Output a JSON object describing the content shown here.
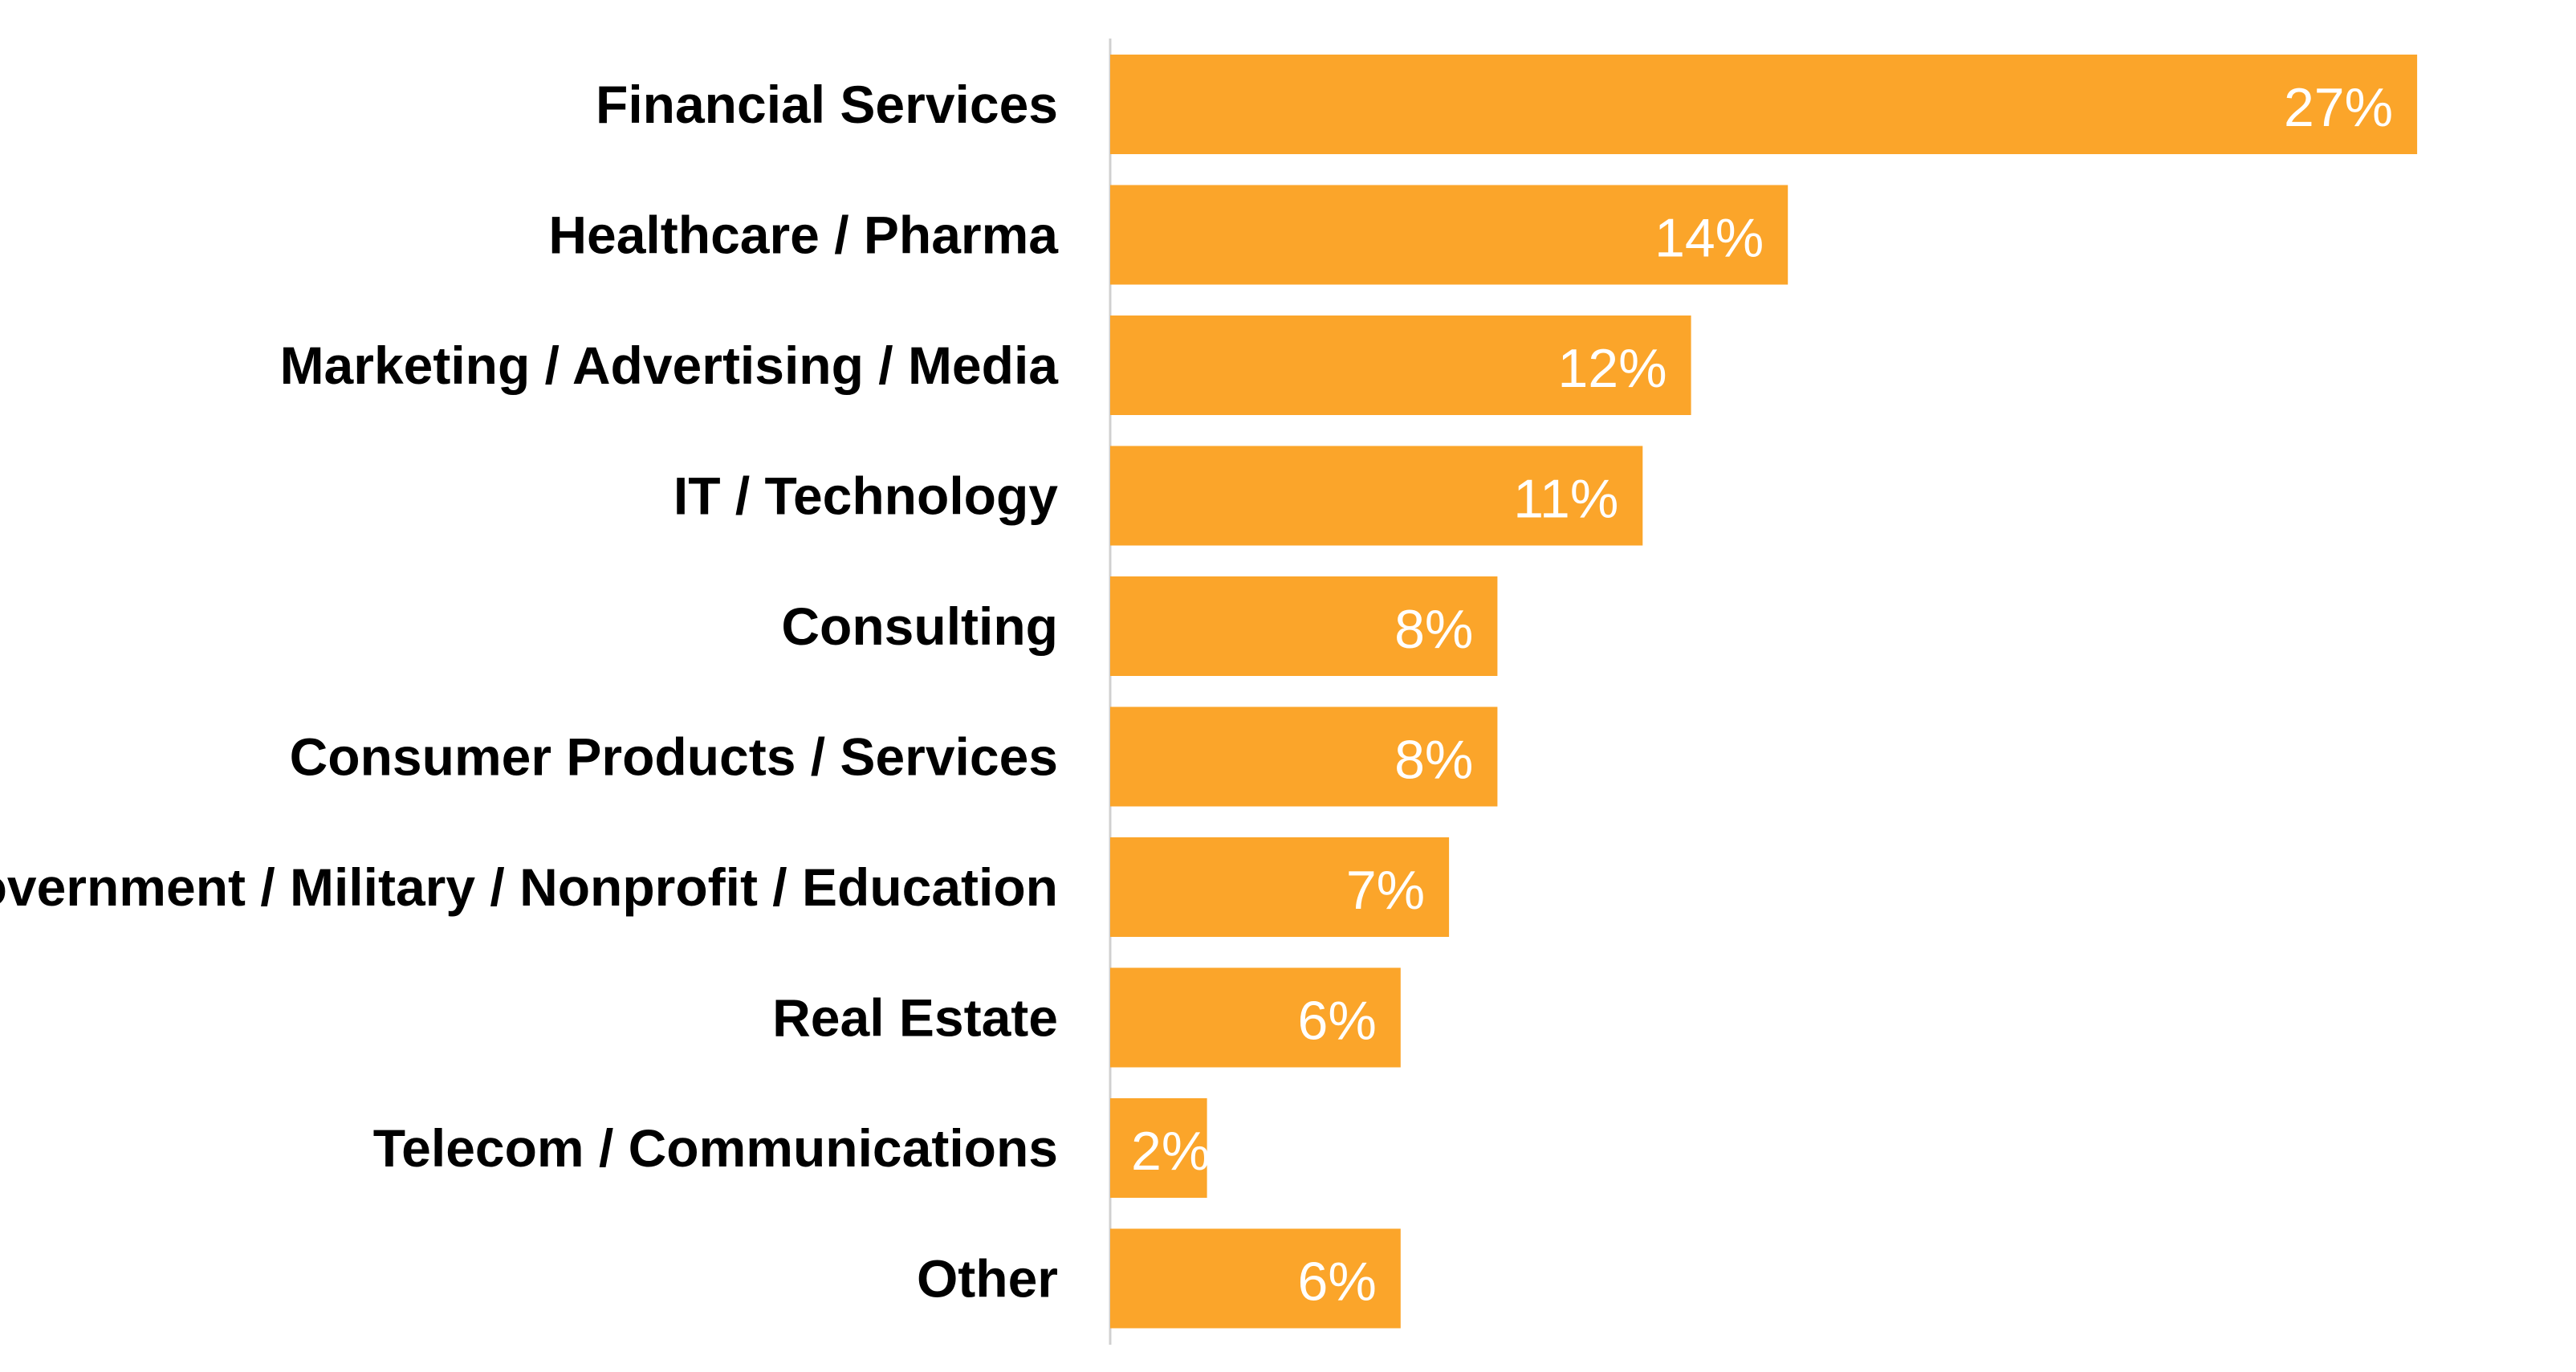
{
  "chart_data": {
    "type": "bar",
    "orientation": "horizontal",
    "categories": [
      "Financial Services",
      "Healthcare / Pharma",
      "Marketing / Advertising / Media",
      "IT / Technology",
      "Consulting",
      "Consumer Products / Services",
      "Government / Military / Nonprofit / Education",
      "Real Estate",
      "Telecom / Communications",
      "Other"
    ],
    "values": [
      27,
      14,
      12,
      11,
      8,
      8,
      7,
      6,
      2,
      6
    ],
    "data_labels": [
      "27%",
      "14%",
      "12%",
      "11%",
      "8%",
      "8%",
      "7%",
      "6%",
      "2%",
      "6%"
    ],
    "unit": "%",
    "title": "",
    "xlabel": "",
    "ylabel": "",
    "xlim": [
      0,
      30
    ],
    "grid": false,
    "legend": "none",
    "bar_color": "#FBA52A"
  }
}
